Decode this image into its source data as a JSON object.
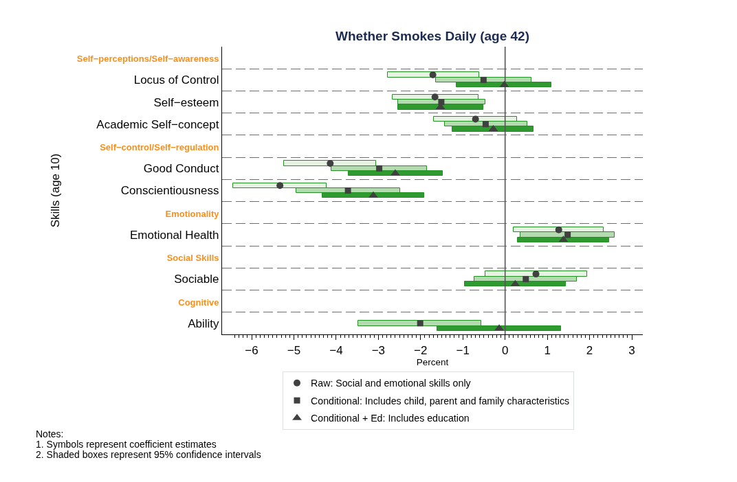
{
  "chart_data": {
    "type": "bar",
    "orientation": "horizontal",
    "title": "Whether Smokes Daily (age 42)",
    "xlabel": "Percent",
    "ylabel": "Skills (age 10)",
    "categories": [
      "Self−perceptions/Self−awareness",
      "Locus of Control",
      "Self−esteem",
      "Academic Self−concept",
      "Self−control/Self−regulation",
      "Good Conduct",
      "Conscientiousness",
      "Emotionality",
      "Emotional Health",
      "Social Skills",
      "Sociable",
      "Cognitive",
      "Ability"
    ],
    "series": [
      {
        "color": "#e6f3e3",
        "base": [
          null,
          -2.78,
          -2.67,
          -1.68,
          null,
          -5.23,
          -6.44,
          null,
          0.2,
          null,
          -0.47,
          null,
          null
        ],
        "values": [
          null,
          2.16,
          2.04,
          1.96,
          null,
          2.18,
          2.22,
          null,
          2.13,
          null,
          2.41,
          null,
          null
        ]
      },
      {
        "color": "#b4dab0",
        "base": [
          null,
          -1.64,
          -2.53,
          -1.43,
          null,
          -4.11,
          -4.94,
          null,
          0.37,
          null,
          -0.72,
          null,
          -3.47
        ],
        "values": [
          null,
          2.27,
          2.06,
          1.95,
          null,
          2.26,
          2.45,
          null,
          2.22,
          null,
          2.42,
          null,
          2.91
        ]
      },
      {
        "color": "#2f9a2f",
        "base": [
          null,
          -1.15,
          -2.53,
          -1.25,
          null,
          -3.71,
          -4.33,
          null,
          0.29,
          null,
          -0.95,
          null,
          -1.61
        ],
        "values": [
          null,
          2.25,
          2.01,
          1.93,
          null,
          2.23,
          2.42,
          null,
          2.18,
          null,
          2.38,
          null,
          2.94
        ]
      },
      {
        "type": "scatter",
        "name": "Raw: Social and emotional skills only",
        "color": "#404040",
        "marker": "circle",
        "values": [
          null,
          -1.71,
          -1.66,
          -0.7,
          null,
          -4.14,
          -5.33,
          null,
          1.27,
          null,
          0.73,
          null,
          null
        ]
      },
      {
        "type": "scatter",
        "name": "Conditional: Includes child, parent and family characteristics",
        "color": "#404040",
        "marker": "square",
        "values": [
          null,
          -0.51,
          -1.51,
          -0.46,
          null,
          -2.98,
          -3.72,
          null,
          1.48,
          null,
          0.49,
          null,
          -2.01
        ]
      },
      {
        "type": "scatter",
        "name": "Conditional + Ed: Includes education",
        "color": "#404040",
        "marker": "triangle",
        "values": [
          null,
          -0.02,
          -1.53,
          -0.28,
          null,
          -2.6,
          -3.12,
          null,
          1.38,
          null,
          0.24,
          null,
          -0.14
        ]
      }
    ],
    "xlim": [
      -6.7,
      3.26
    ],
    "xticks": [
      {
        "value": -6.4,
        "label": null
      },
      {
        "value": -6.3,
        "label": null
      },
      {
        "value": -6.2,
        "label": null
      },
      {
        "value": -6.1,
        "label": null
      },
      {
        "value": -6,
        "label": "−6"
      },
      {
        "value": -5.9,
        "label": null
      },
      {
        "value": -5.8,
        "label": null
      },
      {
        "value": -5.7,
        "label": null
      },
      {
        "value": -5.6,
        "label": null
      },
      {
        "value": -5.5,
        "label": null
      },
      {
        "value": -5.4,
        "label": null
      },
      {
        "value": -5.3,
        "label": null
      },
      {
        "value": -5.2,
        "label": null
      },
      {
        "value": -5.1,
        "label": null
      },
      {
        "value": -5,
        "label": "−5"
      },
      {
        "value": -4.9,
        "label": null
      },
      {
        "value": -4.8,
        "label": null
      },
      {
        "value": -4.7,
        "label": null
      },
      {
        "value": -4.6,
        "label": null
      },
      {
        "value": -4.5,
        "label": null
      },
      {
        "value": -4.4,
        "label": null
      },
      {
        "value": -4.3,
        "label": null
      },
      {
        "value": -4.2,
        "label": null
      },
      {
        "value": -4.1,
        "label": null
      },
      {
        "value": -4,
        "label": "−4"
      },
      {
        "value": -3.9,
        "label": null
      },
      {
        "value": -3.8,
        "label": null
      },
      {
        "value": -3.7,
        "label": null
      },
      {
        "value": -3.6,
        "label": null
      },
      {
        "value": -3.5,
        "label": null
      },
      {
        "value": -3.4,
        "label": null
      },
      {
        "value": -3.3,
        "label": null
      },
      {
        "value": -3.2,
        "label": null
      },
      {
        "value": -3.1,
        "label": null
      },
      {
        "value": -3,
        "label": "−3"
      },
      {
        "value": -2.9,
        "label": null
      },
      {
        "value": -2.8,
        "label": null
      },
      {
        "value": -2.7,
        "label": null
      },
      {
        "value": -2.6,
        "label": null
      },
      {
        "value": -2.5,
        "label": null
      },
      {
        "value": -2.4,
        "label": null
      },
      {
        "value": -2.3,
        "label": null
      },
      {
        "value": -2.2,
        "label": null
      },
      {
        "value": -2.1,
        "label": null
      },
      {
        "value": -2,
        "label": "−2"
      },
      {
        "value": -1.9,
        "label": null
      },
      {
        "value": -1.8,
        "label": null
      },
      {
        "value": -1.7,
        "label": null
      },
      {
        "value": -1.6,
        "label": null
      },
      {
        "value": -1.5,
        "label": null
      },
      {
        "value": -1.4,
        "label": null
      },
      {
        "value": -1.3,
        "label": null
      },
      {
        "value": -1.2,
        "label": null
      },
      {
        "value": -1.1,
        "label": null
      },
      {
        "value": -1,
        "label": "−1"
      },
      {
        "value": -0.9,
        "label": null
      },
      {
        "value": -0.8,
        "label": null
      },
      {
        "value": -0.7,
        "label": null
      },
      {
        "value": -0.6,
        "label": null
      },
      {
        "value": -0.5,
        "label": null
      },
      {
        "value": -0.4,
        "label": null
      },
      {
        "value": -0.3,
        "label": null
      },
      {
        "value": -0.2,
        "label": null
      },
      {
        "value": -0.1,
        "label": null
      },
      0,
      {
        "value": 0.1,
        "label": null
      },
      {
        "value": 0.2,
        "label": null
      },
      {
        "value": 0.3,
        "label": null
      },
      {
        "value": 0.4,
        "label": null
      },
      {
        "value": 0.5,
        "label": null
      },
      {
        "value": 0.6,
        "label": null
      },
      {
        "value": 0.7,
        "label": null
      },
      {
        "value": 0.8,
        "label": null
      },
      {
        "value": 0.9,
        "label": null
      },
      1,
      {
        "value": 1.1,
        "label": null
      },
      {
        "value": 1.2,
        "label": null
      },
      {
        "value": 1.3,
        "label": null
      },
      {
        "value": 1.4,
        "label": null
      },
      {
        "value": 1.5,
        "label": null
      },
      {
        "value": 1.6,
        "label": null
      },
      {
        "value": 1.7,
        "label": null
      },
      {
        "value": 1.8,
        "label": null
      },
      {
        "value": 1.9,
        "label": null
      },
      2,
      {
        "value": 2.1,
        "label": null
      },
      {
        "value": 2.2,
        "label": null
      },
      {
        "value": 2.3,
        "label": null
      },
      {
        "value": 2.4,
        "label": null
      },
      {
        "value": 2.5,
        "label": null
      },
      {
        "value": 2.6,
        "label": null
      },
      {
        "value": 2.7,
        "label": null
      },
      {
        "value": 2.8,
        "label": null
      },
      {
        "value": 2.9,
        "label": null
      },
      3
    ],
    "ref_lines": [
      {
        "axis": "x",
        "value": 0,
        "color": "#555555"
      }
    ],
    "grid": "y",
    "legend": "bottom",
    "annotations": [
      "Notes:",
      "1. Symbols represent coefficient estimates",
      "2. Shaded boxes represent 95% confidence intervals"
    ]
  }
}
